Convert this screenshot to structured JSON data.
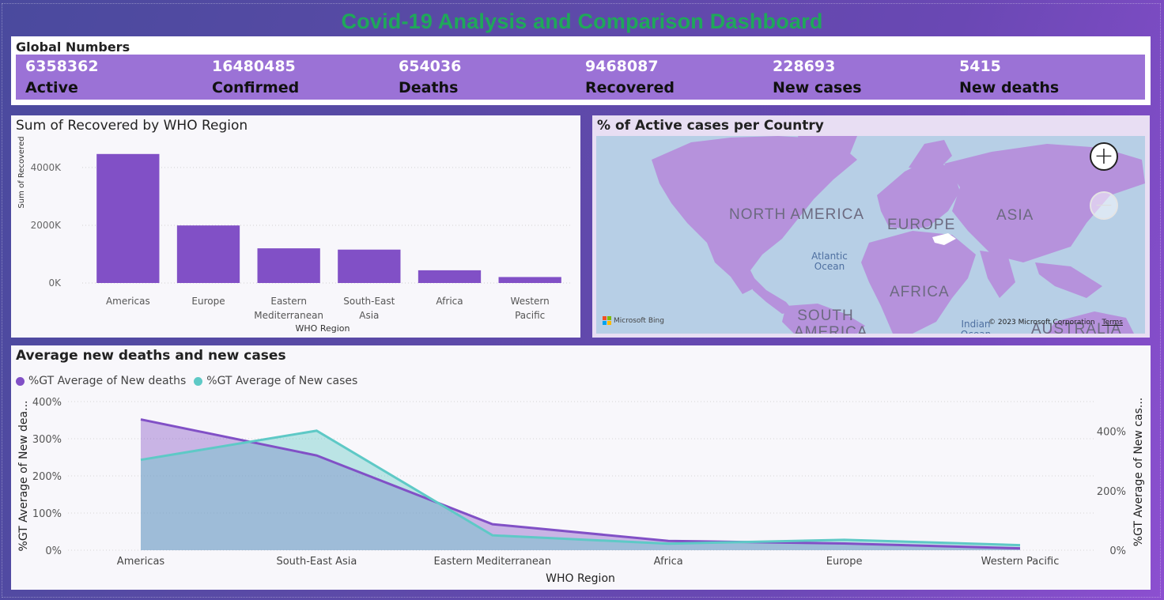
{
  "dashboard_title": "Covid-19 Analysis and Comparison Dashboard",
  "global_numbers": {
    "header": "Global Numbers",
    "kpis": [
      {
        "value": "6358362",
        "label": "Active"
      },
      {
        "value": "16480485",
        "label": "Confirmed"
      },
      {
        "value": "654036",
        "label": "Deaths"
      },
      {
        "value": "9468087",
        "label": "Recovered"
      },
      {
        "value": "228693",
        "label": "New cases"
      },
      {
        "value": "5415",
        "label": "New deaths"
      }
    ]
  },
  "bar_chart": {
    "title": "Sum of Recovered by WHO Region"
  },
  "map_panel": {
    "title": "% of Active cases per Country",
    "labels": [
      "NORTH AMERICA",
      "EUROPE",
      "ASIA",
      "AFRICA",
      "SOUTH AMERICA",
      "AUSTRALIA"
    ],
    "ocean_labels": [
      "Atlantic Ocean",
      "Indian Ocean"
    ],
    "attribution": "Microsoft Bing",
    "copyright": "© 2023 Microsoft Corporation",
    "terms": "Terms",
    "zoom_in_icon": "plus-icon",
    "zoom_out_icon": "minus-icon"
  },
  "area_chart": {
    "title": "Average new deaths and new cases"
  },
  "colors": {
    "title": "#1fa85a",
    "kpi_strip": "#9b72d6",
    "bar": "#8150c6",
    "deaths_line": "#8150c6",
    "cases_line": "#5ec9c6",
    "land": "#b692dc",
    "water": "#b7cfe6"
  },
  "chart_data": [
    {
      "type": "bar",
      "title": "Sum of Recovered by WHO Region",
      "xlabel": "WHO Region",
      "ylabel": "Sum of Recovered",
      "categories": [
        "Americas",
        "Europe",
        "Eastern Mediterranean",
        "South-East Asia",
        "Africa",
        "Western Pacific"
      ],
      "values": [
        4468616,
        1993723,
        1201400,
        1156933,
        440645,
        206770
      ],
      "yticks": [
        "0K",
        "2000K",
        "4000K"
      ],
      "ylim": [
        0,
        4600000
      ],
      "grid": true
    },
    {
      "type": "area",
      "title": "Average new deaths and new cases",
      "xlabel": "WHO Region",
      "ylabel": "%GT Average of New dea...",
      "ylabel_right": "%GT Average of New cas...",
      "categories": [
        "Americas",
        "South-East Asia",
        "Eastern Mediterranean",
        "Africa",
        "Europe",
        "Western Pacific"
      ],
      "yticks_left": [
        "0%",
        "100%",
        "200%",
        "300%",
        "400%"
      ],
      "yticks_right": [
        "0%",
        "200%",
        "400%"
      ],
      "ylim_left": [
        0,
        400
      ],
      "ylim_right": [
        0,
        500
      ],
      "legend_position": "top-left",
      "grid": true,
      "series": [
        {
          "name": "%GT Average of New deaths",
          "axis": "left",
          "values": [
            352,
            255,
            70,
            25,
            18,
            5
          ]
        },
        {
          "name": "%GT Average of New cases",
          "axis": "right",
          "values": [
            304,
            402,
            50,
            22,
            35,
            17
          ]
        }
      ]
    }
  ]
}
